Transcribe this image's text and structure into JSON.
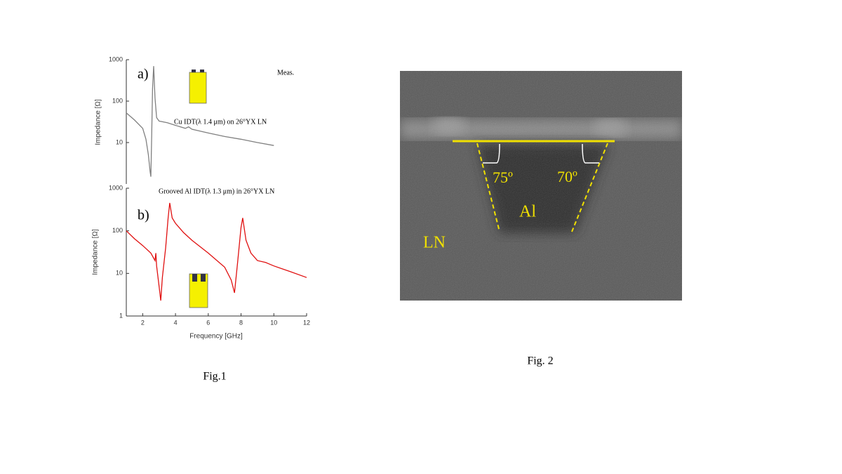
{
  "chart_data": [
    {
      "type": "line",
      "title": "a)",
      "annotations": [
        "Meas.",
        "Cu IDT(λ 1.4 μm) on 26°YX LN"
      ],
      "ylabel": "Impedance [Ω]",
      "log_scale": true,
      "color": "#808080",
      "xlim": [
        1,
        12
      ],
      "ylim": [
        1,
        1000
      ],
      "yticks": [
        10,
        100,
        1000
      ],
      "x": [
        1,
        1.5,
        2,
        2.2,
        2.35,
        2.45,
        2.5,
        2.55,
        2.6,
        2.67,
        2.75,
        2.85,
        3.0,
        3.5,
        4.0,
        4.6,
        4.8,
        5.0,
        6.0,
        7.0,
        8.0,
        9.0,
        10.0
      ],
      "values": [
        52,
        35,
        22,
        12,
        5,
        2,
        1.5,
        15,
        200,
        700,
        120,
        40,
        33,
        30,
        26,
        22,
        24,
        21,
        17,
        14,
        12,
        10,
        8.5
      ]
    },
    {
      "type": "line",
      "title": "b)",
      "annotations": [
        "Grooved Al IDT(λ 1.3 μm) in 26°YX LN"
      ],
      "ylabel": "Impedance [Ω]",
      "xlabel": "Frequency [GHz]",
      "log_scale": true,
      "color": "#e01010",
      "xlim": [
        1,
        12
      ],
      "ylim": [
        1,
        1000
      ],
      "yticks": [
        1,
        10,
        100,
        1000
      ],
      "xticks": [
        2,
        4,
        6,
        8,
        10,
        12
      ],
      "x": [
        1,
        1.5,
        2,
        2.5,
        2.75,
        2.8,
        2.85,
        3.0,
        3.1,
        3.2,
        3.4,
        3.55,
        3.65,
        3.8,
        4.0,
        4.5,
        5.0,
        6.0,
        7.0,
        7.4,
        7.6,
        7.8,
        8.0,
        8.1,
        8.3,
        8.6,
        9.0,
        9.5,
        10.0,
        11.0,
        12.0
      ],
      "values": [
        100,
        65,
        45,
        30,
        20,
        30,
        15,
        5,
        2.3,
        8,
        40,
        200,
        450,
        200,
        150,
        90,
        60,
        30,
        14,
        7,
        3.5,
        20,
        120,
        200,
        60,
        30,
        20,
        18,
        15,
        11,
        8
      ]
    }
  ],
  "captions": [
    "Fig.1",
    "Fig. 2"
  ],
  "figure2": {
    "labels": [
      "75º",
      "70º",
      "Al",
      "LN"
    ]
  }
}
